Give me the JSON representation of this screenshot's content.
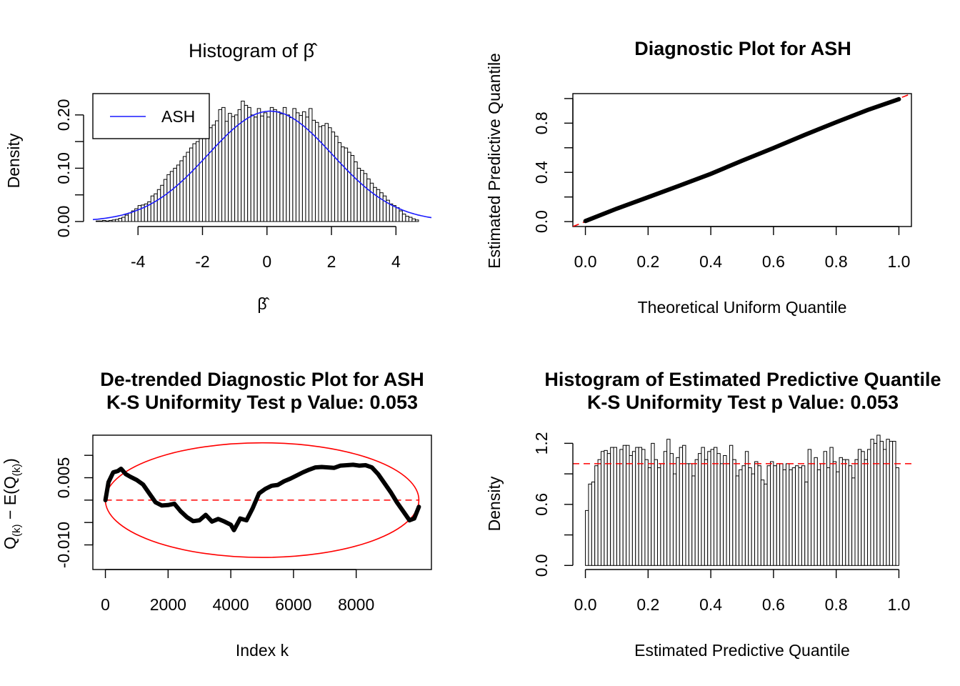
{
  "colors": {
    "ash_curve": "#1a1aff",
    "reference_line": "#ff0000",
    "ellipse": "#ff0000",
    "points": "#000000"
  },
  "chart_data": [
    {
      "id": "hist_beta",
      "type": "bar",
      "title_prefix": "Histogram of ",
      "title_symbol": "β̂",
      "xlabel": "β̂",
      "ylabel": "Density",
      "xlim": [
        -5.4,
        5.1
      ],
      "ylim": [
        0,
        0.24
      ],
      "xticks": [
        "-4",
        "-2",
        "0",
        "2",
        "4"
      ],
      "yticks": [
        "0.00",
        "0.10",
        "0.20"
      ],
      "legend": {
        "position": "top-left",
        "entries": [
          "ASH"
        ]
      },
      "bin_width": 0.1,
      "bin_start": -5.3,
      "values": [
        0.001,
        0.001,
        0.002,
        0.001,
        0.002,
        0.003,
        0.004,
        0.006,
        0.008,
        0.012,
        0.016,
        0.02,
        0.024,
        0.03,
        0.031,
        0.033,
        0.037,
        0.048,
        0.052,
        0.06,
        0.068,
        0.079,
        0.088,
        0.094,
        0.1,
        0.106,
        0.114,
        0.122,
        0.13,
        0.138,
        0.146,
        0.15,
        0.158,
        0.161,
        0.17,
        0.176,
        0.181,
        0.189,
        0.21,
        0.214,
        0.188,
        0.203,
        0.197,
        0.2,
        0.21,
        0.226,
        0.218,
        0.214,
        0.2,
        0.196,
        0.212,
        0.198,
        0.204,
        0.196,
        0.214,
        0.21,
        0.206,
        0.202,
        0.214,
        0.2,
        0.195,
        0.212,
        0.204,
        0.199,
        0.206,
        0.196,
        0.212,
        0.19,
        0.186,
        0.178,
        0.18,
        0.184,
        0.176,
        0.168,
        0.16,
        0.148,
        0.14,
        0.138,
        0.13,
        0.124,
        0.112,
        0.1,
        0.096,
        0.09,
        0.08,
        0.072,
        0.064,
        0.06,
        0.054,
        0.048,
        0.04,
        0.033,
        0.03,
        0.026,
        0.02,
        0.014,
        0.01,
        0.008,
        0.005,
        0.003
      ],
      "curve": {
        "name": "ASH",
        "mean": 0.1,
        "sd": 1.93,
        "peak": 0.207
      }
    },
    {
      "id": "diag_ash",
      "type": "scatter",
      "title": "Diagnostic Plot for ASH",
      "xlabel": "Theoretical Uniform Quantile",
      "ylabel": "Estimated Predictive Quantile",
      "xlim": [
        -0.04,
        1.04
      ],
      "ylim": [
        -0.04,
        1.04
      ],
      "xticks": [
        "0.0",
        "0.2",
        "0.4",
        "0.6",
        "0.8",
        "1.0"
      ],
      "yticks": [
        "0.0",
        "0.4",
        "0.8"
      ],
      "x": [
        0,
        0.1,
        0.2,
        0.3,
        0.4,
        0.5,
        0.6,
        0.7,
        0.8,
        0.9,
        1.0
      ],
      "y": [
        0.005,
        0.105,
        0.198,
        0.292,
        0.388,
        0.495,
        0.598,
        0.705,
        0.808,
        0.907,
        0.995
      ],
      "reference": "y = x"
    },
    {
      "id": "detrended",
      "type": "line",
      "title_lines": [
        "De-trended Diagnostic Plot for ASH",
        "K-S Uniformity Test p Value: 0.053"
      ],
      "xlabel": "Index k",
      "ylabel": "Q(k) − E(Q(k))",
      "xlim": [
        -400,
        10400
      ],
      "ylim": [
        -0.0155,
        0.0145
      ],
      "xticks": [
        "0",
        "2000",
        "4000",
        "6000",
        "8000"
      ],
      "yticks": [
        "-0.010",
        "0.005"
      ],
      "y_ticks_unlabeled": [
        -0.005,
        0.0,
        0.01
      ],
      "x": [
        0,
        100,
        250,
        400,
        500,
        650,
        800,
        1000,
        1200,
        1400,
        1600,
        1800,
        2000,
        2200,
        2400,
        2600,
        2800,
        3000,
        3200,
        3400,
        3600,
        3800,
        4000,
        4100,
        4300,
        4500,
        4700,
        4900,
        5100,
        5300,
        5500,
        5700,
        5900,
        6100,
        6300,
        6500,
        6700,
        6900,
        7100,
        7300,
        7500,
        7700,
        7900,
        8100,
        8300,
        8500,
        8700,
        8900,
        9100,
        9300,
        9500,
        9700,
        9850,
        10000
      ],
      "y": [
        0.0,
        0.004,
        0.0062,
        0.0065,
        0.007,
        0.0058,
        0.0052,
        0.0045,
        0.0035,
        0.0015,
        -0.0005,
        -0.0012,
        -0.0011,
        -0.0008,
        -0.0025,
        -0.0038,
        -0.0047,
        -0.0045,
        -0.0033,
        -0.0048,
        -0.0042,
        -0.0048,
        -0.0055,
        -0.0067,
        -0.0041,
        -0.0045,
        -0.0018,
        0.0015,
        0.0025,
        0.0032,
        0.0034,
        0.0042,
        0.0048,
        0.0055,
        0.0062,
        0.0068,
        0.0073,
        0.0074,
        0.0073,
        0.0072,
        0.0077,
        0.0078,
        0.0079,
        0.0077,
        0.0078,
        0.0073,
        0.0058,
        0.0038,
        0.0018,
        -0.0005,
        -0.0025,
        -0.0045,
        -0.0041,
        -0.0015
      ],
      "reference": "y = 0",
      "ellipse": {
        "cx": 5000,
        "cy": 0.0,
        "rx": 5000,
        "ry": 0.0128
      }
    },
    {
      "id": "hist_quantile",
      "type": "bar",
      "title_lines": [
        "Histogram of Estimated Predictive Quantile",
        "K-S Uniformity Test p Value: 0.053"
      ],
      "xlabel": "Estimated Predictive Quantile",
      "ylabel": "Density",
      "xlim": [
        -0.04,
        1.04
      ],
      "ylim": [
        -0.04,
        1.28
      ],
      "xticks": [
        "0.0",
        "0.2",
        "0.4",
        "0.6",
        "0.8",
        "1.0"
      ],
      "yticks": [
        "0.0",
        "0.6",
        "1.2"
      ],
      "y_ticks_unlabeled": [
        0.3,
        0.9
      ],
      "bin_width": 0.01,
      "values": [
        0.54,
        0.8,
        0.82,
        0.98,
        1.04,
        1.12,
        1.13,
        1.1,
        1.16,
        1.16,
        1.0,
        1.14,
        1.18,
        1.18,
        1.08,
        1.12,
        1.16,
        1.16,
        1.14,
        1.04,
        0.96,
        1.2,
        1.04,
        0.96,
        1.0,
        1.12,
        1.24,
        1.1,
        0.9,
        1.06,
        1.16,
        1.18,
        1.0,
        1.0,
        0.88,
        1.04,
        1.1,
        1.16,
        1.04,
        1.12,
        1.14,
        1.16,
        1.1,
        1.0,
        1.08,
        1.0,
        1.18,
        1.04,
        0.88,
        0.94,
        0.98,
        1.12,
        0.96,
        0.9,
        1.02,
        0.98,
        0.84,
        0.8,
        0.98,
        1.02,
        0.98,
        1.0,
        1.0,
        0.94,
        1.0,
        0.94,
        0.96,
        0.98,
        0.96,
        0.98,
        0.82,
        1.14,
        1.0,
        1.06,
        0.94,
        1.0,
        1.12,
        0.96,
        1.16,
        1.02,
        0.92,
        1.06,
        1.04,
        1.04,
        0.98,
        0.86,
        1.04,
        1.14,
        1.12,
        1.04,
        1.14,
        1.24,
        1.2,
        1.28,
        1.22,
        1.14,
        1.24,
        1.22,
        1.22,
        0.96,
        0.52
      ],
      "reference": "y = 1"
    }
  ]
}
